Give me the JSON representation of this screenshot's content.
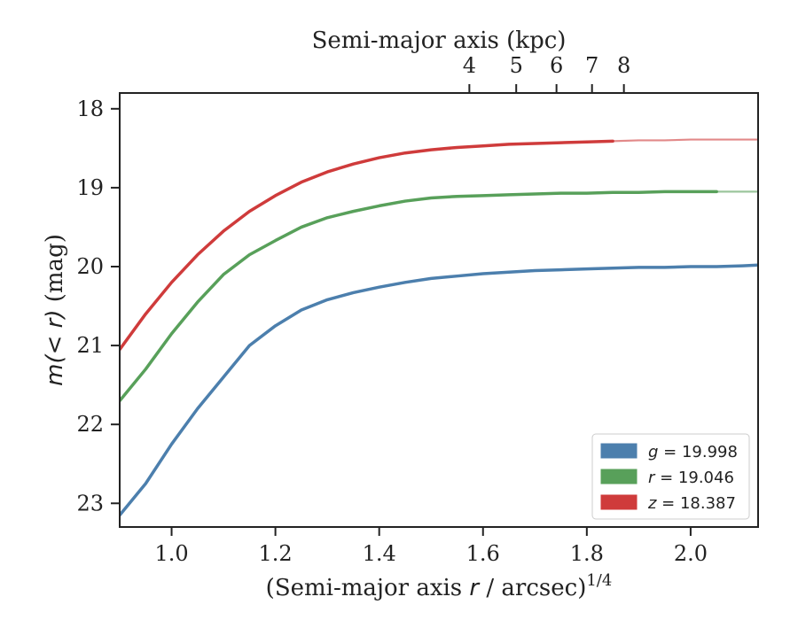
{
  "chart_data": {
    "type": "line",
    "xlabel": "(Semi-major axis r / arcsec)^{1/4}",
    "xlabel_parts": {
      "prefix": "(Semi-major axis ",
      "var": "r",
      "mid": " / arcsec)",
      "sup": "1/4"
    },
    "ylabel": "m(<r) (mag)",
    "ylabel_parts": {
      "math": "m(< r)",
      "unit": " (mag)"
    },
    "top_xlabel": "Semi-major axis (kpc)",
    "xlim": [
      0.9,
      2.13
    ],
    "ylim": [
      23.3,
      17.8
    ],
    "y_inverted": true,
    "x_ticks": [
      "1.0",
      "1.2",
      "1.4",
      "1.6",
      "1.8",
      "2.0"
    ],
    "y_ticks": [
      "18",
      "19",
      "20",
      "21",
      "22",
      "23"
    ],
    "top_ticks": [
      "4",
      "5",
      "6",
      "7",
      "8"
    ],
    "legend_position": "lower right",
    "series": [
      {
        "name": "g = 19.998",
        "label_var": "g",
        "label_val": "= 19.998",
        "color": "#4c7fad",
        "x": [
          0.9,
          0.95,
          1.0,
          1.05,
          1.1,
          1.15,
          1.2,
          1.25,
          1.3,
          1.35,
          1.4,
          1.45,
          1.5,
          1.55,
          1.6,
          1.65,
          1.7,
          1.75,
          1.8,
          1.85,
          1.9,
          1.95,
          2.0,
          2.05,
          2.1,
          2.13
        ],
        "y": [
          23.15,
          22.75,
          22.25,
          21.8,
          21.4,
          21.0,
          20.75,
          20.55,
          20.42,
          20.33,
          20.26,
          20.2,
          20.15,
          20.12,
          20.09,
          20.07,
          20.05,
          20.04,
          20.03,
          20.02,
          20.01,
          20.01,
          20.0,
          20.0,
          19.99,
          19.98
        ],
        "faded_from": null
      },
      {
        "name": "r = 19.046",
        "label_var": "r",
        "label_val": "= 19.046",
        "color": "#58a05a",
        "x": [
          0.9,
          0.95,
          1.0,
          1.05,
          1.1,
          1.15,
          1.2,
          1.25,
          1.3,
          1.35,
          1.4,
          1.45,
          1.5,
          1.55,
          1.6,
          1.65,
          1.7,
          1.75,
          1.8,
          1.85,
          1.9,
          1.95,
          2.0,
          2.05,
          2.1,
          2.13
        ],
        "y": [
          21.7,
          21.3,
          20.85,
          20.45,
          20.1,
          19.85,
          19.67,
          19.5,
          19.38,
          19.3,
          19.23,
          19.17,
          19.13,
          19.11,
          19.1,
          19.09,
          19.08,
          19.07,
          19.07,
          19.06,
          19.06,
          19.05,
          19.05,
          19.05,
          19.05,
          19.05
        ],
        "faded_from": 2.01
      },
      {
        "name": "z = 18.387",
        "label_var": "z",
        "label_val": "= 18.387",
        "color": "#cf3b3b",
        "x": [
          0.9,
          0.95,
          1.0,
          1.05,
          1.1,
          1.15,
          1.2,
          1.25,
          1.3,
          1.35,
          1.4,
          1.45,
          1.5,
          1.55,
          1.6,
          1.65,
          1.7,
          1.75,
          1.8,
          1.85,
          1.9,
          1.95,
          2.0,
          2.05,
          2.1,
          2.13
        ],
        "y": [
          21.05,
          20.6,
          20.2,
          19.85,
          19.55,
          19.3,
          19.1,
          18.93,
          18.8,
          18.7,
          18.62,
          18.56,
          18.52,
          18.49,
          18.47,
          18.45,
          18.44,
          18.43,
          18.42,
          18.41,
          18.4,
          18.4,
          18.39,
          18.39,
          18.39,
          18.39
        ],
        "faded_from": 1.84
      }
    ]
  }
}
